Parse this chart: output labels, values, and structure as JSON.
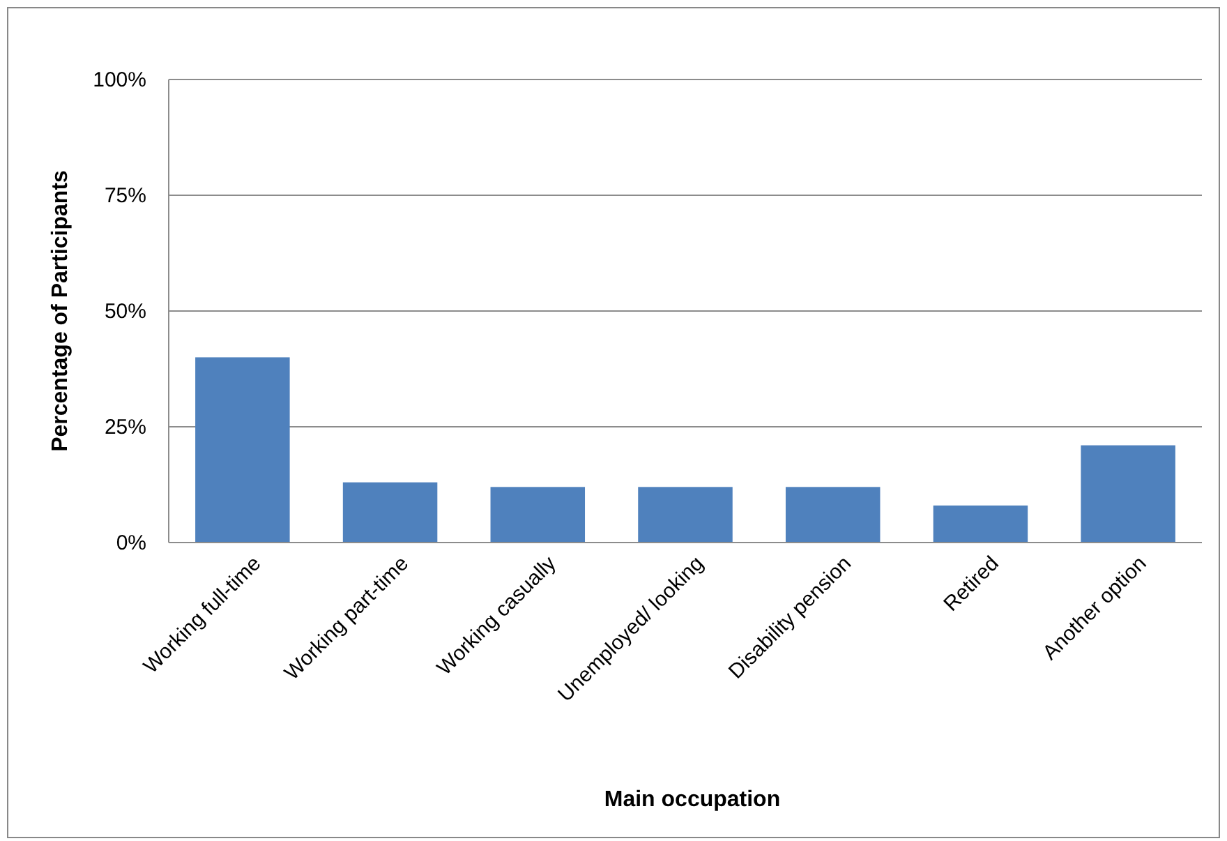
{
  "chart_data": {
    "type": "bar",
    "xlabel": "Main occupation",
    "ylabel": "Percentage of Participants",
    "categories": [
      "Working full-time",
      "Working part-time",
      "Working casually",
      "Unemployed/ looking",
      "Disability pension",
      "Retired",
      "Another option"
    ],
    "values": [
      40,
      13,
      12,
      12,
      12,
      8,
      21
    ],
    "color": "#4f81bd",
    "ylim": [
      0,
      100
    ],
    "yticks": [
      {
        "value": 0,
        "label": "0%"
      },
      {
        "value": 25,
        "label": "25%"
      },
      {
        "value": 50,
        "label": "50%"
      },
      {
        "value": 75,
        "label": "75%"
      },
      {
        "value": 100,
        "label": "100%"
      }
    ],
    "grid": "y"
  }
}
